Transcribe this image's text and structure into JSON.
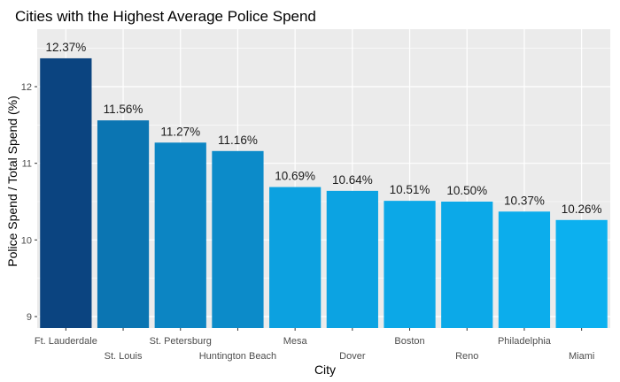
{
  "chart_data": {
    "type": "bar",
    "title": "Cities with the Highest Average Police Spend",
    "xlabel": "City",
    "ylabel": "Police Spend / Total Spend (%)",
    "categories": [
      "Ft. Lauderdale",
      "St. Louis",
      "St. Petersburg",
      "Huntington Beach",
      "Mesa",
      "Dover",
      "Boston",
      "Reno",
      "Philadelphia",
      "Miami"
    ],
    "values": [
      12.37,
      11.56,
      11.27,
      11.16,
      10.69,
      10.64,
      10.51,
      10.5,
      10.37,
      10.26
    ],
    "data_labels": [
      "12.37%",
      "11.56%",
      "11.27%",
      "11.16%",
      "10.69%",
      "10.64%",
      "10.51%",
      "10.50%",
      "10.37%",
      "10.26%"
    ],
    "ylim": [
      8.85,
      12.75
    ],
    "yticks": [
      9,
      10,
      11,
      12
    ],
    "grid": true,
    "legend": "none",
    "colors": {
      "panel": "#ebebeb",
      "grid": "#ffffff",
      "bar_low": "#0cb0ef",
      "bar_high": "#0b4480"
    }
  }
}
